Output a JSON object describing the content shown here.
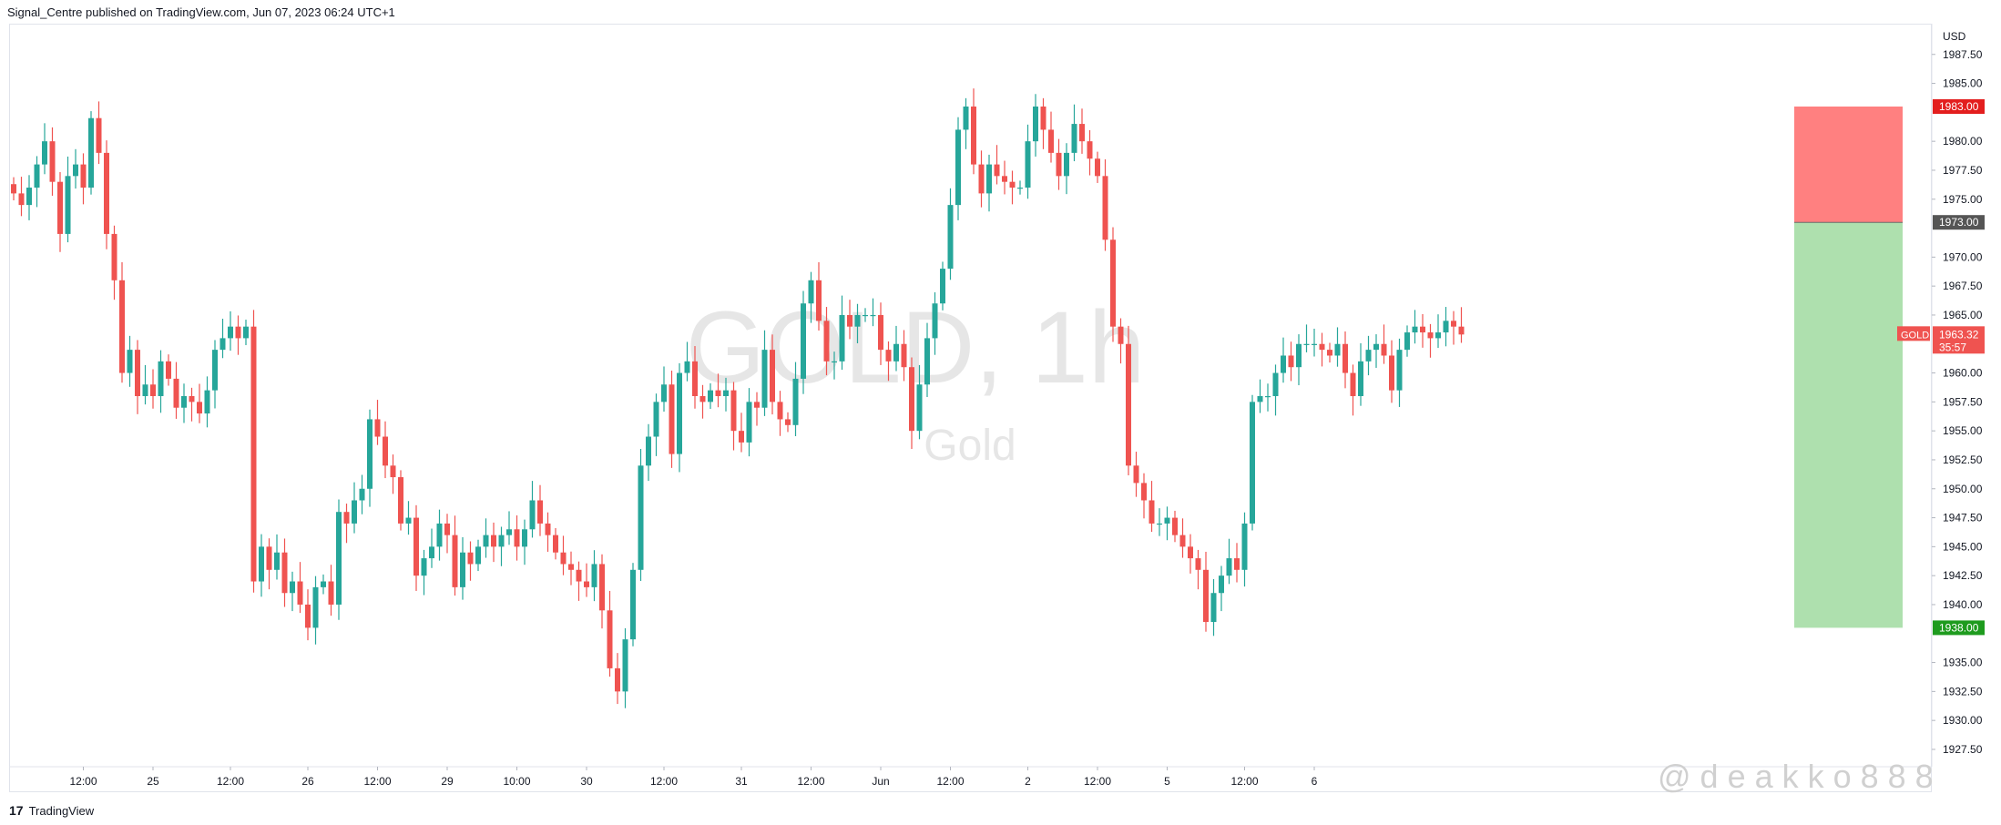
{
  "header": {
    "publisher_line": "Signal_Centre published on TradingView.com, Jun 07, 2023 06:24 UTC+1"
  },
  "footer": {
    "logo_text": "TradingView",
    "logo_mark": "17"
  },
  "watermark": {
    "symbol": "GOLD, 1h",
    "name": "Gold",
    "handle": "@deakko888"
  },
  "colors": {
    "up": "#26a69a",
    "down": "#ef5350",
    "stop_zone": "#ff8080",
    "target_zone": "#aee0ae",
    "stop_label": "#e31e1e",
    "entry_label": "#555555",
    "target_label": "#1e9b1e",
    "last_label": "#ef5350"
  },
  "chart_data": {
    "type": "candlestick",
    "currency": "USD",
    "ylim": [
      1925.5,
      1990.5
    ],
    "y_ticks": [
      "1987.50",
      "1985.00",
      "1980.00",
      "1977.50",
      "1975.00",
      "1970.00",
      "1967.50",
      "1965.00",
      "1960.00",
      "1957.50",
      "1955.00",
      "1952.50",
      "1950.00",
      "1947.50",
      "1945.00",
      "1942.50",
      "1940.00",
      "1935.00",
      "1932.50",
      "1930.00",
      "1927.50"
    ],
    "x_ticks": [
      {
        "label": "12:00",
        "bar": 9
      },
      {
        "label": "25",
        "bar": 18
      },
      {
        "label": "12:00",
        "bar": 28
      },
      {
        "label": "26",
        "bar": 38
      },
      {
        "label": "12:00",
        "bar": 47
      },
      {
        "label": "29",
        "bar": 56
      },
      {
        "label": "10:00",
        "bar": 65
      },
      {
        "label": "30",
        "bar": 74
      },
      {
        "label": "12:00",
        "bar": 84
      },
      {
        "label": "31",
        "bar": 94
      },
      {
        "label": "12:00",
        "bar": 103
      },
      {
        "label": "Jun",
        "bar": 112
      },
      {
        "label": "12:00",
        "bar": 121
      },
      {
        "label": "2",
        "bar": 131
      },
      {
        "label": "12:00",
        "bar": 140
      },
      {
        "label": "5",
        "bar": 149
      },
      {
        "label": "12:00",
        "bar": 159
      },
      {
        "label": "6",
        "bar": 168
      }
    ],
    "closes": [
      1975.5,
      1974.5,
      1976,
      1978,
      1980,
      1976.5,
      1972,
      1977,
      1978,
      1976,
      1982,
      1979,
      1972,
      1968,
      1960,
      1962,
      1958,
      1959,
      1958,
      1961,
      1959.5,
      1957,
      1958,
      1957.5,
      1956.5,
      1958.5,
      1962,
      1963,
      1964,
      1963,
      1964,
      1942,
      1945,
      1943,
      1944.5,
      1941,
      1942,
      1940,
      1938,
      1941.5,
      1942,
      1940,
      1948,
      1947,
      1949,
      1950,
      1956,
      1954.5,
      1952,
      1951,
      1947,
      1947.5,
      1942.5,
      1944,
      1945,
      1947,
      1946,
      1941.5,
      1944.5,
      1943.5,
      1945,
      1946,
      1945,
      1946,
      1946.5,
      1945,
      1946.5,
      1949,
      1947,
      1946,
      1944.5,
      1943.5,
      1943,
      1942,
      1941.5,
      1943.5,
      1939.5,
      1934.5,
      1932.5,
      1937,
      1943,
      1952,
      1954.5,
      1957.5,
      1959,
      1953,
      1960,
      1961,
      1958,
      1957.5,
      1958.5,
      1958,
      1958.5,
      1955,
      1954,
      1957.5,
      1957,
      1962,
      1957.5,
      1956,
      1955.5,
      1959.5,
      1966,
      1968,
      1964.5,
      1961,
      1961,
      1965,
      1964,
      1965,
      1965,
      1965,
      1962,
      1961,
      1962.5,
      1960.5,
      1955,
      1959,
      1963,
      1966,
      1969,
      1974.5,
      1981,
      1983,
      1978,
      1975.5,
      1978,
      1977,
      1976.5,
      1976,
      1976,
      1980,
      1983,
      1981,
      1979,
      1977,
      1979,
      1981.5,
      1980,
      1978.5,
      1977,
      1971.5,
      1964,
      1962.5,
      1952,
      1950.5,
      1949,
      1947,
      1947,
      1947.5,
      1946,
      1945,
      1944,
      1943,
      1938.5,
      1941,
      1942.5,
      1944,
      1943,
      1947,
      1957.5,
      1958,
      1958,
      1960,
      1961.5,
      1960.5,
      1962.5,
      1962.5,
      1962.5,
      1962,
      1961.5,
      1962.5,
      1960,
      1958,
      1961,
      1962,
      1962.5,
      1961.5,
      1958.5,
      1962,
      1963.5,
      1964,
      1963.5,
      1963,
      1963.5,
      1964.5,
      1964,
      1963.32
    ],
    "y_axis_labels": [
      {
        "text": "1983.00",
        "value": 1983.0,
        "kind": "stop"
      },
      {
        "text": "1973.00",
        "value": 1973.0,
        "kind": "entry"
      },
      {
        "text": "1963.32",
        "value": 1963.32,
        "kind": "last",
        "badge": "GOLD",
        "countdown": "35:57"
      },
      {
        "text": "1938.00",
        "value": 1938.0,
        "kind": "target"
      }
    ],
    "position": {
      "side": "short",
      "entry": 1973.0,
      "stop": 1983.0,
      "target": 1938.0
    }
  }
}
